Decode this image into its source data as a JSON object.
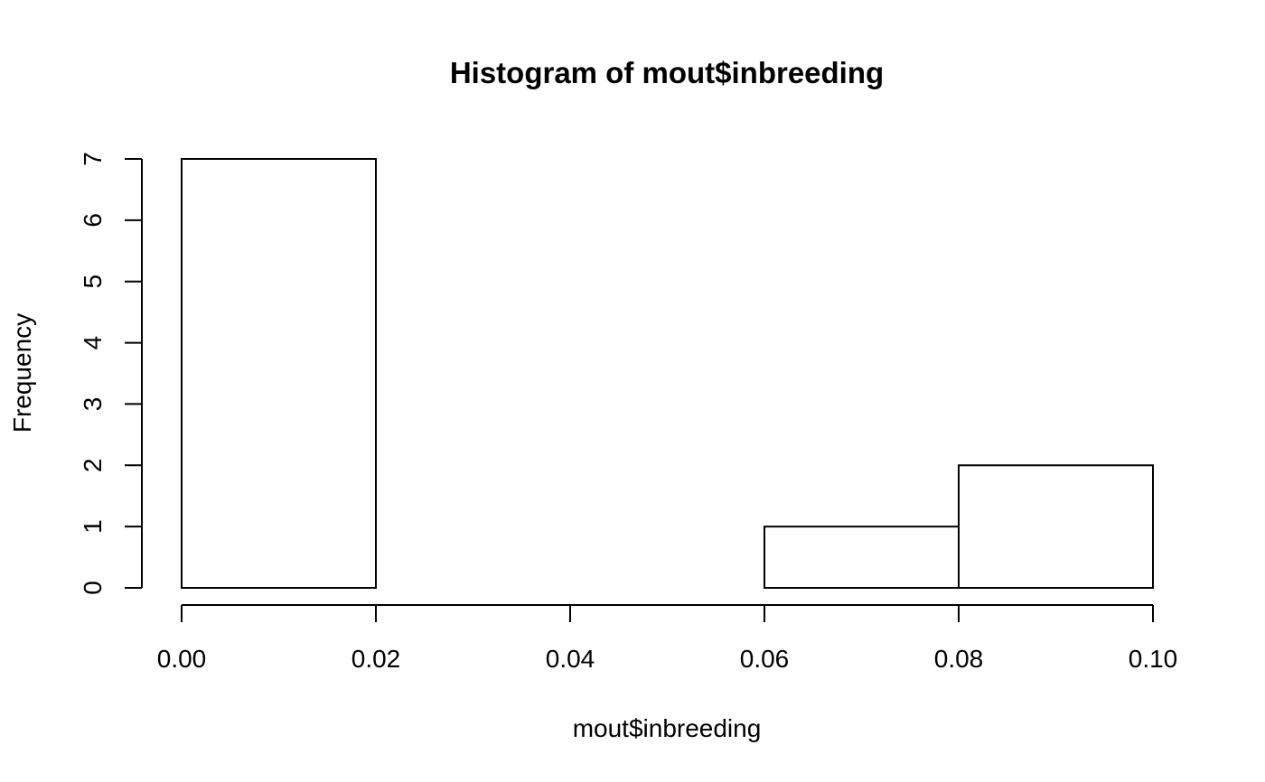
{
  "chart_data": {
    "type": "bar",
    "subtype": "histogram",
    "title": "Histogram of mout$inbreeding",
    "xlabel": "mout$inbreeding",
    "ylabel": "Frequency",
    "bins": [
      {
        "start": 0.0,
        "end": 0.02,
        "count": 7
      },
      {
        "start": 0.02,
        "end": 0.04,
        "count": 0
      },
      {
        "start": 0.04,
        "end": 0.06,
        "count": 0
      },
      {
        "start": 0.06,
        "end": 0.08,
        "count": 1
      },
      {
        "start": 0.08,
        "end": 0.1,
        "count": 2
      }
    ],
    "xlim": [
      0,
      0.1
    ],
    "ylim": [
      0,
      7
    ],
    "x_ticks": [
      "0.00",
      "0.02",
      "0.04",
      "0.06",
      "0.08",
      "0.10"
    ],
    "y_ticks": [
      "0",
      "1",
      "2",
      "3",
      "4",
      "5",
      "6",
      "7"
    ],
    "colors": {
      "bar_fill": "#ffffff",
      "bar_stroke": "#000000"
    },
    "grid": false,
    "legend": "none"
  }
}
